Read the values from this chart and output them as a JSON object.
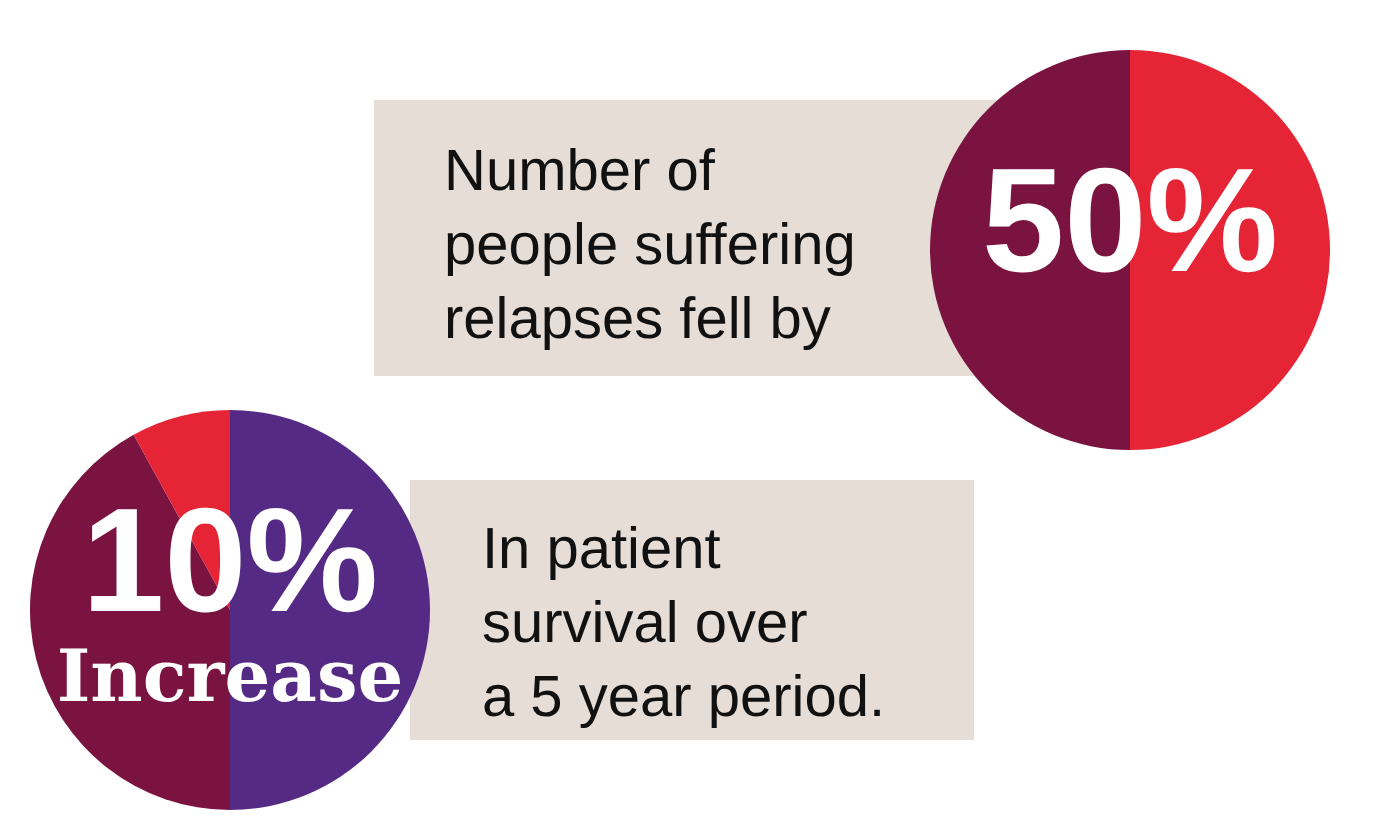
{
  "chart_data": [
    {
      "type": "pie",
      "categories": [
        null,
        null
      ],
      "values": [
        50,
        50
      ],
      "colors": [
        "#e52535",
        "#7a1340"
      ],
      "legend": false,
      "annotations": [
        "Number of\npeople suffering\nrelapses fell by",
        "50%"
      ]
    },
    {
      "type": "pie",
      "categories": [
        null,
        null,
        null
      ],
      "values": [
        50,
        42,
        8
      ],
      "colors": [
        "#552a84",
        "#7a1340",
        "#e52535"
      ],
      "legend": false,
      "annotations": [
        "In patient\nsurvival over\na 5 year period.",
        "10%",
        "Increase"
      ]
    }
  ]
}
